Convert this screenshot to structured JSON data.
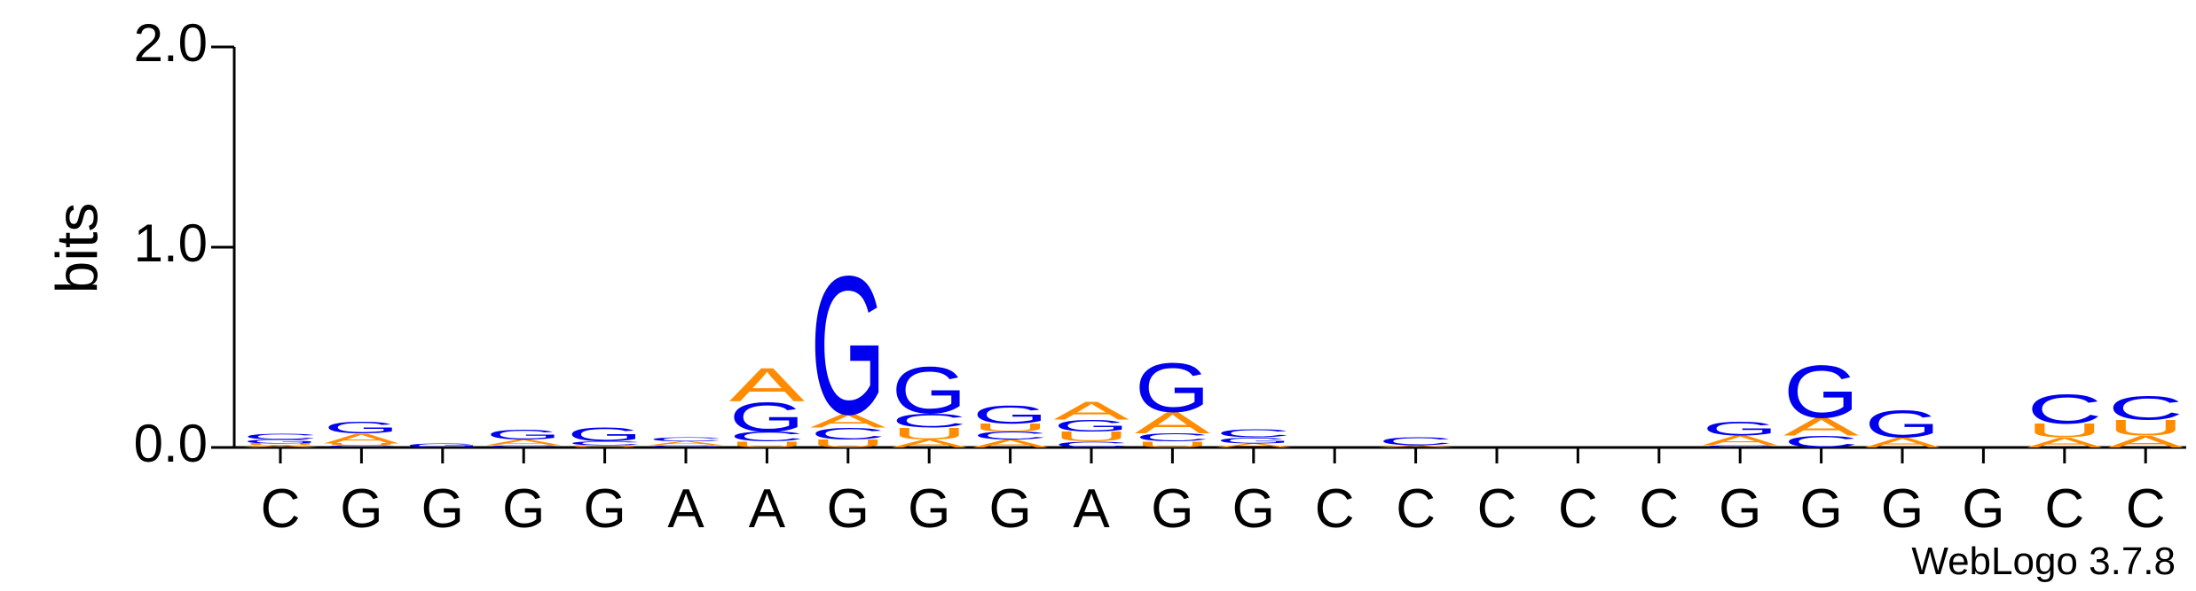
{
  "chart_data": {
    "type": "logo",
    "ylabel": "bits",
    "footer": "WebLogo 3.7.8",
    "ylim": [
      0,
      2
    ],
    "yticks": [
      {
        "value": 0,
        "label": "0.0"
      },
      {
        "value": 1,
        "label": "1.0"
      },
      {
        "value": 2,
        "label": "2.0"
      }
    ],
    "categories": [
      "C",
      "G",
      "G",
      "G",
      "G",
      "A",
      "A",
      "G",
      "G",
      "G",
      "A",
      "G",
      "G",
      "C",
      "C",
      "C",
      "C",
      "C",
      "G",
      "G",
      "G",
      "G",
      "C",
      "C"
    ],
    "series": [
      {
        "name": "A",
        "color": "#ff8c00",
        "values": [
          0.01,
          0.05,
          0,
          0.03,
          0,
          0.02,
          0.17,
          0.07,
          0.04,
          0.04,
          0.09,
          0.11,
          0.02,
          0,
          0.01,
          0,
          0,
          0,
          0.05,
          0.09,
          0.05,
          0,
          0.05,
          0.06
        ]
      },
      {
        "name": "C",
        "color": "#0000ee",
        "values": [
          0.03,
          0.01,
          0,
          0.01,
          0.02,
          0.02,
          0.05,
          0.06,
          0.07,
          0.04,
          0.03,
          0.04,
          0.04,
          0,
          0.04,
          0,
          0,
          0,
          0.01,
          0.06,
          0,
          0,
          0.15,
          0.12
        ]
      },
      {
        "name": "G",
        "color": "#0000ee",
        "values": [
          0.02,
          0.06,
          0.02,
          0.05,
          0.07,
          0.01,
          0.15,
          0.71,
          0.24,
          0.09,
          0.06,
          0.25,
          0.03,
          0,
          0,
          0,
          0,
          0,
          0.07,
          0.27,
          0.14,
          0,
          0,
          0
        ]
      },
      {
        "name": "U",
        "color": "#ff8c00",
        "values": [
          0.01,
          0.01,
          0,
          0,
          0.01,
          0,
          0.03,
          0.04,
          0.06,
          0.04,
          0.05,
          0.03,
          0,
          0,
          0,
          0,
          0,
          0,
          0,
          0,
          0,
          0,
          0.07,
          0.08
        ]
      }
    ]
  }
}
